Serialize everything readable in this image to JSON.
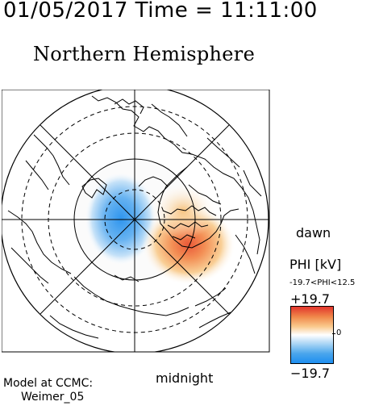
{
  "header": {
    "date_time": "01/05/2017 Time = 11:11:00",
    "hemisphere": "Northern Hemisphere"
  },
  "map": {
    "projection": "polar stereographic, north pole centered",
    "colormap": "blue-white-red",
    "label_right": "dawn",
    "label_bottom": "midnight",
    "potential_cells": {
      "negative_cell": "dusk/pre-noon side, blue",
      "positive_cell": "dawn/post-midnight side, red-orange"
    }
  },
  "legend": {
    "title": "PHI [kV]",
    "range_text": "-19.7<PHI<12.5",
    "max_label": "+19.7",
    "min_label": "−19.7",
    "zero_label": "0",
    "colors": {
      "max": "#e2352c",
      "zero": "#ffffff",
      "min": "#1e8ef0"
    }
  },
  "footer": {
    "model_line1": "Model at CCMC:",
    "model_line2": "Weimer_05"
  }
}
